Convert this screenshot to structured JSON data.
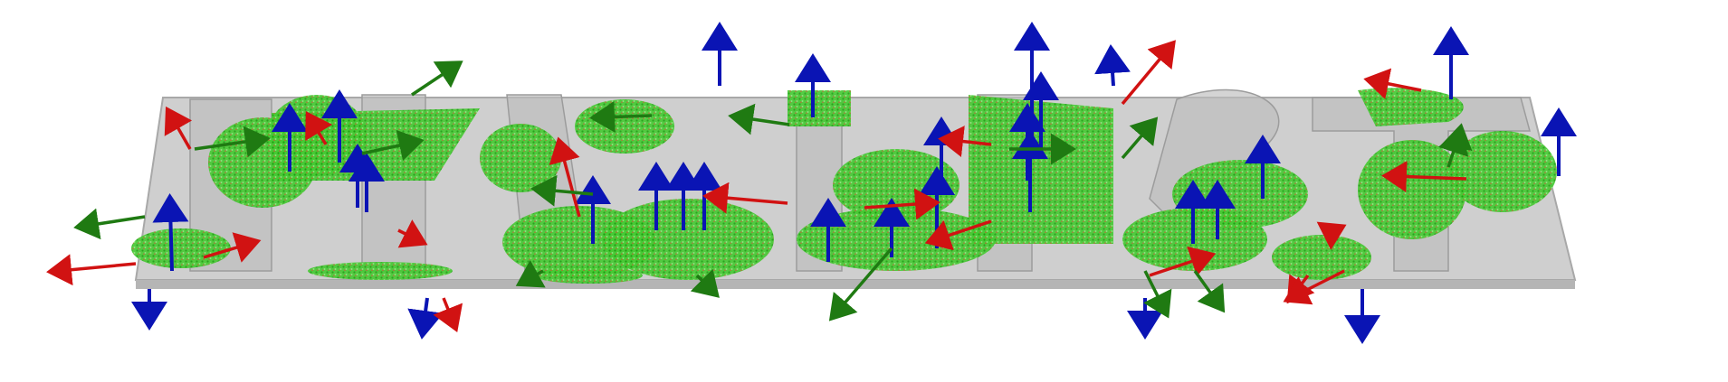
{
  "scene": {
    "description_free": true,
    "background_color": "#ffffff",
    "plate_color": "#c9c9c9",
    "plate_edge_color": "#9a9a9a",
    "point_cloud_color": "#2fbf1f",
    "axis_colors": {
      "x": "#d11212",
      "y": "#1f7a12",
      "z": "#0a14b4"
    }
  },
  "glyphs": [
    {
      "id": "glyph-1",
      "label": ""
    },
    {
      "id": "glyph-2",
      "label": ""
    },
    {
      "id": "glyph-3",
      "label": ""
    },
    {
      "id": "glyph-4",
      "label": ""
    },
    {
      "id": "glyph-5",
      "label": ""
    },
    {
      "id": "glyph-6",
      "label": ""
    }
  ]
}
